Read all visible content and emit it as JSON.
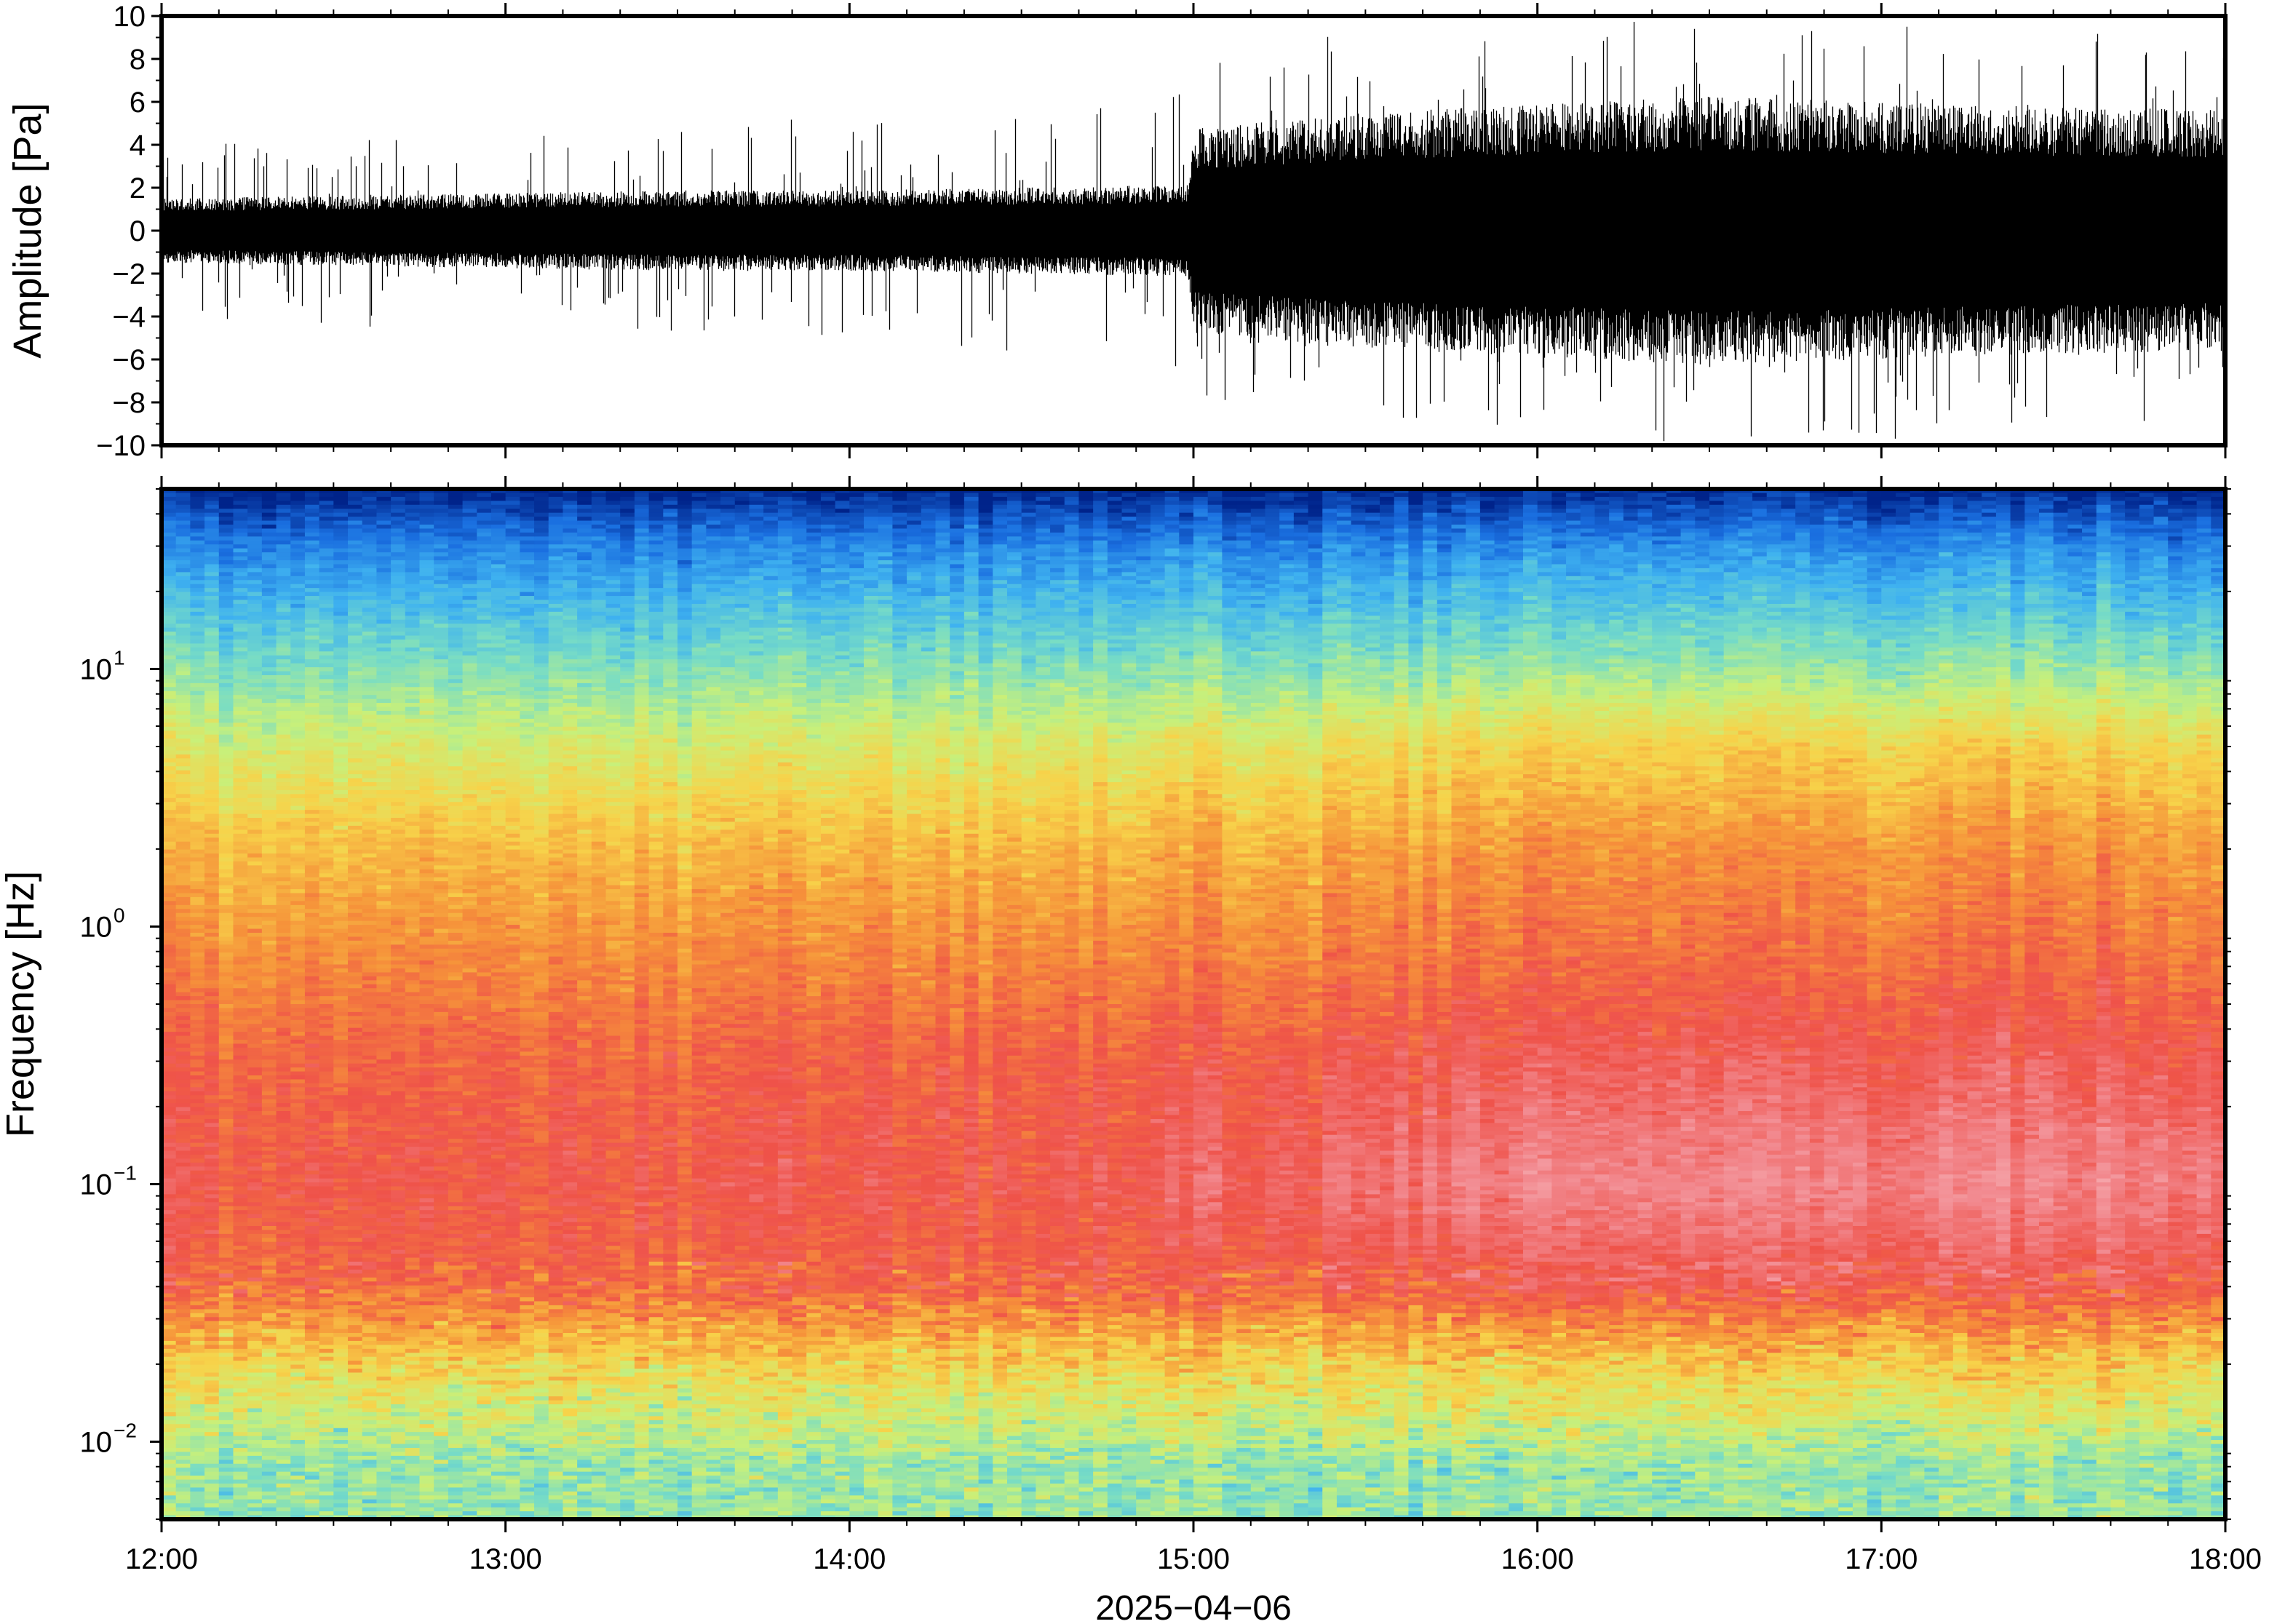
{
  "chart_data": [
    {
      "type": "line",
      "panel": "waveform",
      "ylabel": "Amplitude [Pa]",
      "ylim": [
        -10,
        10
      ],
      "yticks": [
        10,
        8,
        6,
        4,
        2,
        0,
        -2,
        -4,
        -6,
        -8,
        -10
      ],
      "ytick_labels": [
        "10",
        "8",
        "6",
        "4",
        "2",
        "0",
        "−2",
        "−4",
        "−6",
        "−8",
        "−10"
      ],
      "xlim": [
        "12:00",
        "18:00"
      ],
      "envelope": {
        "time": [
          "12:00",
          "12:30",
          "13:00",
          "13:30",
          "14:00",
          "14:30",
          "14:59",
          "15:00",
          "15:30",
          "16:00",
          "16:30",
          "17:00",
          "17:30",
          "18:00"
        ],
        "core_amplitude": [
          1.2,
          1.3,
          1.4,
          1.5,
          1.5,
          1.6,
          1.7,
          3.8,
          4.4,
          4.7,
          5.0,
          4.8,
          4.6,
          4.5
        ],
        "peak_amplitude": [
          4.0,
          4.5,
          4.5,
          5.0,
          5.5,
          6.0,
          6.5,
          8.0,
          9.5,
          9.5,
          10.0,
          9.8,
          9.5,
          9.0
        ]
      },
      "color": "#000000"
    },
    {
      "type": "heatmap",
      "panel": "spectrogram",
      "ylabel": "Frequency [Hz]",
      "yscale": "log",
      "ylim": [
        0.005,
        50
      ],
      "yticks": [
        {
          "value": 10,
          "base": "10",
          "exp": "1"
        },
        {
          "value": 1,
          "base": "10",
          "exp": "0"
        },
        {
          "value": 0.1,
          "base": "10",
          "exp": "−1"
        },
        {
          "value": 0.01,
          "base": "10",
          "exp": "−2"
        }
      ],
      "xlim": [
        "12:00",
        "18:00"
      ],
      "colormap": "jet-like: dark blue (lowest power) - cyan - green - yellow - orange - red - pink (highest power)",
      "colormap_stops": [
        "#00238a",
        "#1a6fe0",
        "#3fb2f0",
        "#77dcc6",
        "#c8f07a",
        "#f7d34a",
        "#f6923a",
        "#ef5249",
        "#f28a90",
        "#f6b0b4"
      ],
      "power_profile_before_15": [
        {
          "freq": 50,
          "level": 0.0
        },
        {
          "freq": 30,
          "level": 0.15
        },
        {
          "freq": 12,
          "level": 0.32
        },
        {
          "freq": 5,
          "level": 0.48
        },
        {
          "freq": 2,
          "level": 0.6
        },
        {
          "freq": 0.8,
          "level": 0.68
        },
        {
          "freq": 0.3,
          "level": 0.75
        },
        {
          "freq": 0.1,
          "level": 0.78
        },
        {
          "freq": 0.04,
          "level": 0.74
        },
        {
          "freq": 0.02,
          "level": 0.55
        },
        {
          "freq": 0.008,
          "level": 0.38
        }
      ],
      "power_profile_after_15": [
        {
          "freq": 50,
          "level": 0.0
        },
        {
          "freq": 30,
          "level": 0.16
        },
        {
          "freq": 12,
          "level": 0.34
        },
        {
          "freq": 5,
          "level": 0.55
        },
        {
          "freq": 2,
          "level": 0.66
        },
        {
          "freq": 0.8,
          "level": 0.72
        },
        {
          "freq": 0.3,
          "level": 0.8
        },
        {
          "freq": 0.1,
          "level": 0.88
        },
        {
          "freq": 0.04,
          "level": 0.78
        },
        {
          "freq": 0.02,
          "level": 0.56
        },
        {
          "freq": 0.008,
          "level": 0.38
        }
      ]
    }
  ],
  "x_axis": {
    "tick_labels": [
      "12:00",
      "13:00",
      "14:00",
      "15:00",
      "16:00",
      "17:00",
      "18:00"
    ],
    "date_label": "2025−04−06"
  }
}
